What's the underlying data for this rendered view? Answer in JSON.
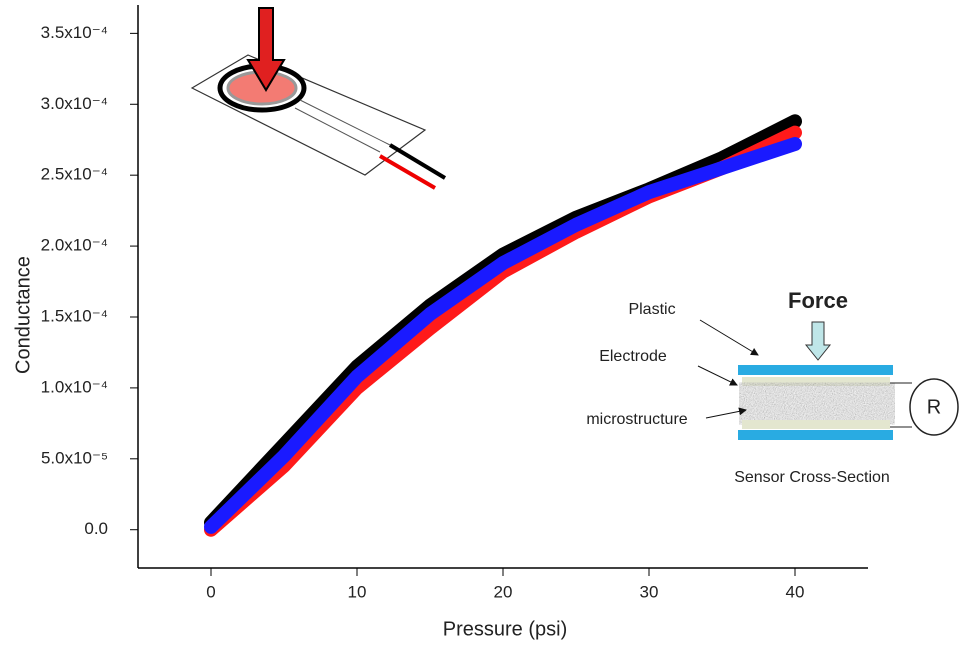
{
  "chart_data": {
    "type": "line",
    "x_label": "Pressure (psi)",
    "y_label": "Conductance",
    "x": [
      0,
      5,
      10,
      15,
      20,
      25,
      30,
      35,
      40
    ],
    "series": [
      {
        "name": "black",
        "color": "#000000",
        "values": [
          5e-06,
          6e-05,
          0.000115,
          0.000158,
          0.000194,
          0.00022,
          0.00024,
          0.000262,
          0.000288
        ]
      },
      {
        "name": "red",
        "color": "#ff1a1a",
        "values": [
          0,
          4.5e-05,
          0.0001,
          0.000142,
          0.000182,
          0.00021,
          0.000235,
          0.000255,
          0.00028
        ]
      },
      {
        "name": "blue",
        "color": "#1a1aff",
        "values": [
          2e-06,
          5.2e-05,
          0.000108,
          0.000152,
          0.000188,
          0.000215,
          0.000238,
          0.000255,
          0.000272
        ]
      }
    ],
    "xlim": [
      -5,
      45
    ],
    "xticks": [
      0,
      10,
      20,
      30,
      40
    ],
    "ylim": [
      -2.7e-05,
      0.00037
    ],
    "yticks": [
      {
        "value": 0,
        "label": "0.0"
      },
      {
        "value": 5e-05,
        "label": "5.0x10⁻⁵"
      },
      {
        "value": 0.0001,
        "label": "1.0x10⁻⁴"
      },
      {
        "value": 0.00015,
        "label": "1.5x10⁻⁴"
      },
      {
        "value": 0.0002,
        "label": "2.0x10⁻⁴"
      },
      {
        "value": 0.00025,
        "label": "2.5x10⁻⁴"
      },
      {
        "value": 0.0003,
        "label": "3.0x10⁻⁴"
      },
      {
        "value": 0.00035,
        "label": "3.5x10⁻⁴"
      }
    ],
    "annotations": [
      "Force",
      "Plastic",
      "Electrode",
      "microstructure",
      "R",
      "Sensor Cross-Section"
    ]
  }
}
